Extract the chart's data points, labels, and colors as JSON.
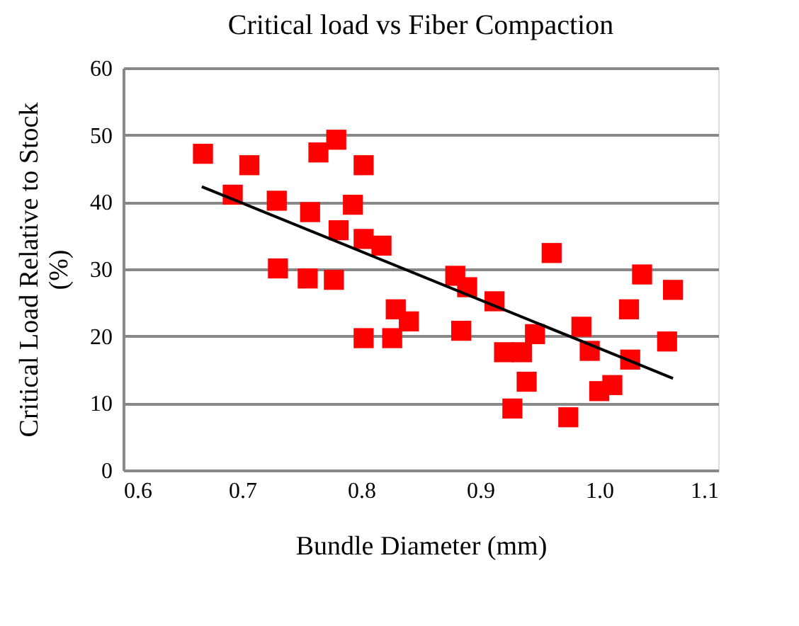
{
  "chart_data": {
    "type": "scatter",
    "title": "Critical load vs Fiber Compaction",
    "xlabel": "Bundle Diameter (mm)",
    "ylabel": "Critical Load Relative to Stock\n(%)",
    "xlim": [
      0.6,
      1.1
    ],
    "xticks": [
      0.6,
      0.7,
      0.8,
      0.9,
      {
        "value": 1.0,
        "label": "1.0"
      },
      1.1
    ],
    "ylim": [
      0,
      60
    ],
    "yticks": [
      0,
      10,
      20,
      30,
      40,
      50,
      60
    ],
    "grid": "y",
    "marker": "square",
    "series": [
      {
        "color": "#ff0000",
        "x": [
          0.667,
          0.706,
          0.692,
          0.729,
          0.764,
          0.779,
          0.802,
          0.757,
          0.793,
          0.781,
          0.802,
          0.817,
          0.73,
          0.755,
          0.777,
          0.802,
          0.826,
          0.829,
          0.84,
          0.879,
          0.889,
          0.884,
          0.912,
          0.96,
          0.92,
          0.935,
          0.946,
          0.939,
          0.927,
          0.974,
          0.985,
          0.992,
          1.0,
          1.011,
          1.026,
          1.025,
          1.036,
          1.062,
          1.057
        ],
        "values": [
          47.2,
          45.5,
          41.1,
          40.2,
          47.4,
          49.3,
          45.5,
          38.5,
          39.6,
          35.8,
          34.5,
          33.5,
          30.1,
          28.6,
          28.4,
          19.7,
          19.7,
          24.0,
          22.2,
          29.0,
          27.3,
          20.8,
          25.2,
          32.4,
          17.6,
          17.6,
          20.3,
          13.2,
          9.2,
          7.9,
          21.4,
          17.8,
          11.8,
          12.7,
          16.5,
          24.0,
          29.2,
          26.9,
          19.2
        ]
      },
      {
        "type": "line",
        "color": "#000000",
        "marker": "none",
        "line_style": "solid",
        "x": [
          0.666,
          1.062
        ],
        "values": [
          42.3,
          13.7
        ]
      }
    ]
  }
}
